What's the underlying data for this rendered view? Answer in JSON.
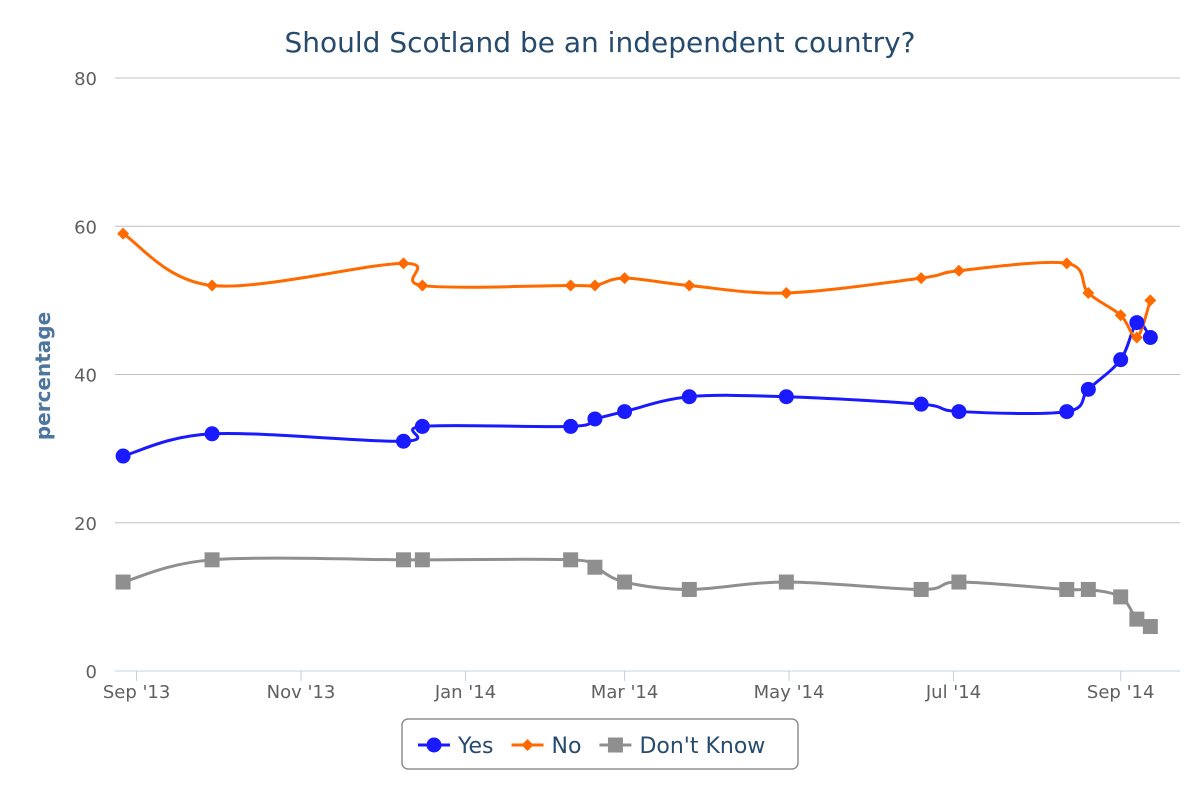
{
  "chart_data": {
    "type": "line",
    "title": "Should Scotland be an independent country?",
    "ylabel": "percentage",
    "xlabel": "",
    "ylim": [
      0,
      80
    ],
    "yticks": [
      0,
      20,
      40,
      60,
      80
    ],
    "xlim": [
      "2013-08-24",
      "2014-09-23"
    ],
    "xticks": [
      {
        "date": "2013-09-01",
        "label": "Sep '13"
      },
      {
        "date": "2013-11-01",
        "label": "Nov '13"
      },
      {
        "date": "2014-01-01",
        "label": "Jan '14"
      },
      {
        "date": "2014-03-01",
        "label": "Mar '14"
      },
      {
        "date": "2014-05-01",
        "label": "May '14"
      },
      {
        "date": "2014-07-01",
        "label": "Jul '14"
      },
      {
        "date": "2014-09-01",
        "label": "Sep '14"
      }
    ],
    "grid": true,
    "legend": "bottom-center",
    "series": [
      {
        "name": "Yes",
        "color": "#1a1aff",
        "marker": "circle",
        "points": [
          [
            "2013-08-27",
            29
          ],
          [
            "2013-09-29",
            32
          ],
          [
            "2013-12-09",
            31
          ],
          [
            "2013-12-16",
            33
          ],
          [
            "2014-02-09",
            33
          ],
          [
            "2014-02-18",
            34
          ],
          [
            "2014-03-01",
            35
          ],
          [
            "2014-03-25",
            37
          ],
          [
            "2014-04-30",
            37
          ],
          [
            "2014-06-19",
            36
          ],
          [
            "2014-07-03",
            35
          ],
          [
            "2014-08-12",
            35
          ],
          [
            "2014-08-20",
            38
          ],
          [
            "2014-09-01",
            42
          ],
          [
            "2014-09-07",
            47
          ],
          [
            "2014-09-12",
            45
          ]
        ]
      },
      {
        "name": "No",
        "color": "#ff6a00",
        "marker": "diamond",
        "points": [
          [
            "2013-08-27",
            59
          ],
          [
            "2013-09-29",
            52
          ],
          [
            "2013-12-09",
            55
          ],
          [
            "2013-12-16",
            52
          ],
          [
            "2014-02-09",
            52
          ],
          [
            "2014-02-18",
            52
          ],
          [
            "2014-03-01",
            53
          ],
          [
            "2014-03-25",
            52
          ],
          [
            "2014-04-30",
            51
          ],
          [
            "2014-06-19",
            53
          ],
          [
            "2014-07-03",
            54
          ],
          [
            "2014-08-12",
            55
          ],
          [
            "2014-08-20",
            51
          ],
          [
            "2014-09-01",
            48
          ],
          [
            "2014-09-07",
            45
          ],
          [
            "2014-09-12",
            50
          ]
        ]
      },
      {
        "name": "Don't Know",
        "color": "#8f8f8f",
        "marker": "square",
        "points": [
          [
            "2013-08-27",
            12
          ],
          [
            "2013-09-29",
            15
          ],
          [
            "2013-12-09",
            15
          ],
          [
            "2013-12-16",
            15
          ],
          [
            "2014-02-09",
            15
          ],
          [
            "2014-02-18",
            14
          ],
          [
            "2014-03-01",
            12
          ],
          [
            "2014-03-25",
            11
          ],
          [
            "2014-04-30",
            12
          ],
          [
            "2014-06-19",
            11
          ],
          [
            "2014-07-03",
            12
          ],
          [
            "2014-08-12",
            11
          ],
          [
            "2014-08-20",
            11
          ],
          [
            "2014-09-01",
            10
          ],
          [
            "2014-09-07",
            7
          ],
          [
            "2014-09-12",
            6
          ]
        ]
      }
    ]
  }
}
